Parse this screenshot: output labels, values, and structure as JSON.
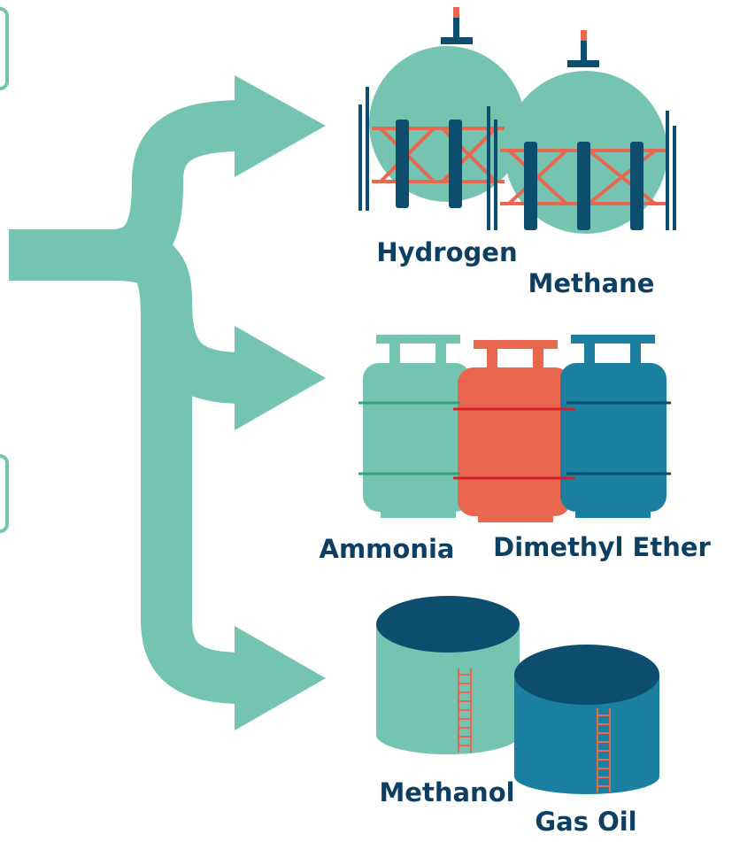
{
  "groups": [
    {
      "items": [
        "Hydrogen",
        "Methane"
      ]
    },
    {
      "items": [
        "Ammonia",
        "Dimethyl Ether"
      ]
    },
    {
      "items": [
        "Methanol",
        "Gas Oil"
      ]
    }
  ]
}
